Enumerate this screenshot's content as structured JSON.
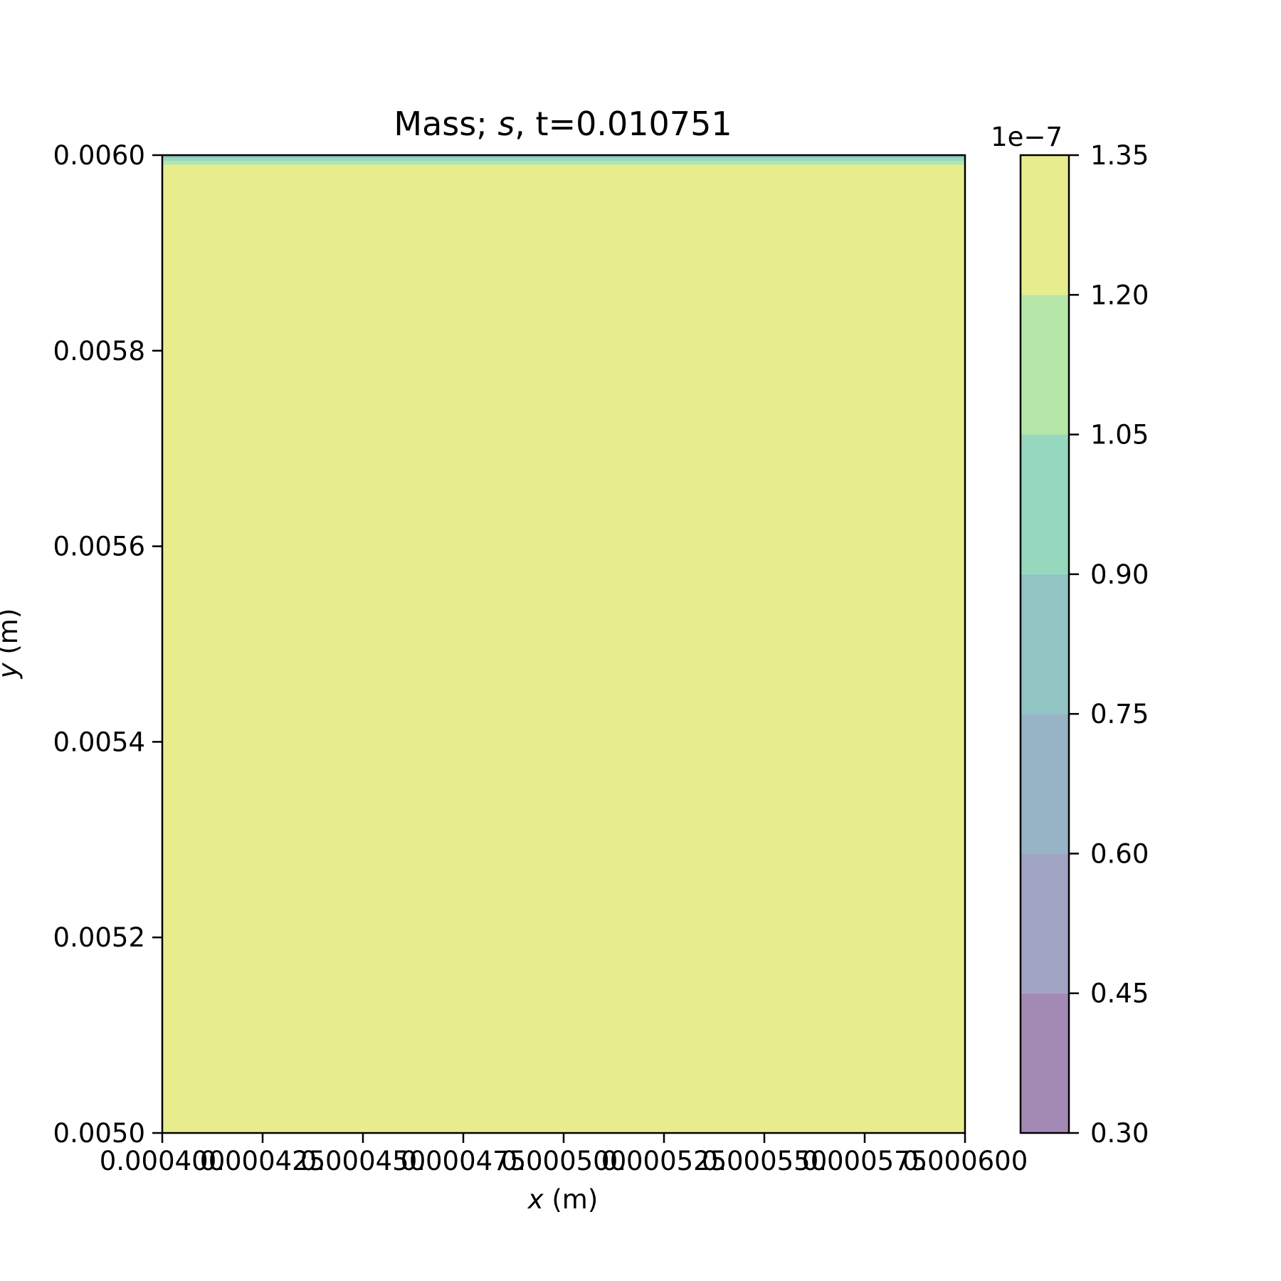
{
  "chart_data": {
    "type": "heatmap",
    "title": {
      "prefix": "Mass; ",
      "var": "s",
      "suffix": ", t=0.010751"
    },
    "xlabel": {
      "var": "x",
      "unit": " (m)"
    },
    "ylabel": {
      "var": "y",
      "unit": " (m)"
    },
    "xlim": [
      0.0004,
      0.0006
    ],
    "ylim": [
      0.005,
      0.006
    ],
    "xticks": [
      "0.000400",
      "0.000425",
      "0.000450",
      "0.000475",
      "0.000500",
      "0.000525",
      "0.000550",
      "0.000575",
      "0.000600"
    ],
    "yticks": [
      "0.0050",
      "0.0052",
      "0.0054",
      "0.0056",
      "0.0058",
      "0.0060"
    ],
    "colorbar": {
      "offset_label": "1e−7",
      "levels": [
        0.3,
        0.45,
        0.6,
        0.75,
        0.9,
        1.05,
        1.2,
        1.35
      ],
      "tick_labels": [
        "0.30",
        "0.45",
        "0.60",
        "0.75",
        "0.90",
        "1.05",
        "1.20",
        "1.35"
      ],
      "colors": [
        "#a38ab4",
        "#a0a3c2",
        "#97b3c6",
        "#90c5c4",
        "#96d8be",
        "#b6e6a8",
        "#e7ed8c"
      ]
    },
    "field": [
      {
        "y_from": 0.005,
        "y_to": 0.00599,
        "level_index": 6
      },
      {
        "y_from": 0.00599,
        "y_to": 0.005994,
        "level_index": 5
      },
      {
        "y_from": 0.005994,
        "y_to": 0.005997,
        "level_index": 4
      },
      {
        "y_from": 0.005997,
        "y_to": 0.006,
        "level_index": 3
      }
    ]
  }
}
